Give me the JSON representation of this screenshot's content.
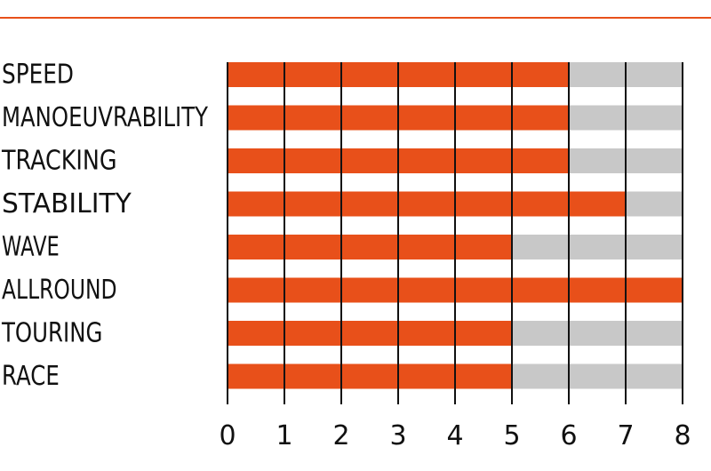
{
  "colors": {
    "accent": "#e8501a",
    "remainder": "#c8c8c8",
    "rule": "#e8501a",
    "text": "#111111"
  },
  "chart_data": {
    "type": "bar",
    "orientation": "horizontal",
    "categories": [
      "SPEED",
      "MANOEUVRABILITY",
      "TRACKING",
      "STABILITY",
      "WAVE",
      "ALLROUND",
      "TOURING",
      "RACE"
    ],
    "values": [
      6,
      6,
      6,
      7,
      5,
      8,
      5,
      5
    ],
    "xlim": [
      0,
      8
    ],
    "xticks": [
      0,
      1,
      2,
      3,
      4,
      5,
      6,
      7,
      8
    ],
    "grid": true,
    "title": "",
    "xlabel": "",
    "ylabel": ""
  }
}
